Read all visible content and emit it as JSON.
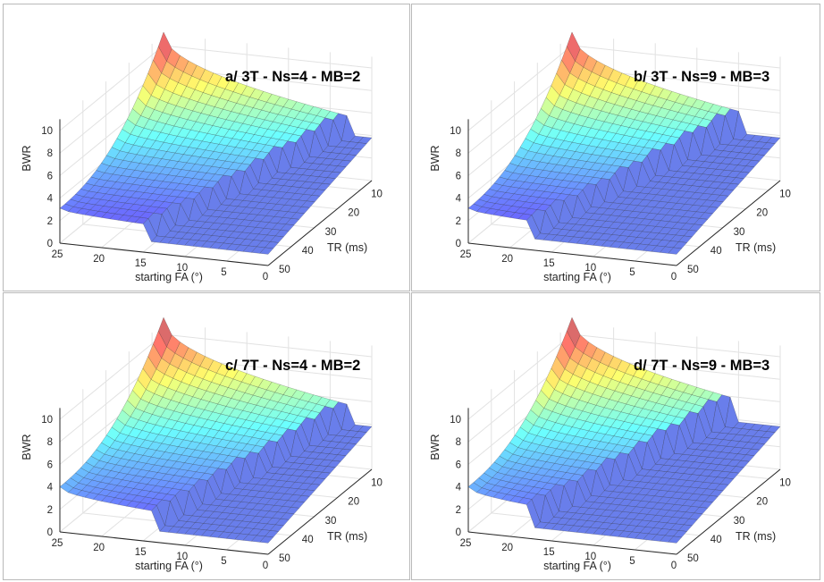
{
  "chart_data": [
    {
      "type": "surface",
      "title": "a/ 3T - Ns=4 - MB=2",
      "xlabel": "starting FA (°)",
      "ylabel": "TR (ms)",
      "zlabel": "BWR",
      "x_ticks": [
        "25",
        "20",
        "15",
        "10",
        "5",
        "0"
      ],
      "y_ticks": [
        "10",
        "20",
        "30",
        "40",
        "50"
      ],
      "z_ticks": [
        "0",
        "2",
        "4",
        "6",
        "8",
        "10"
      ],
      "xlim": [
        0,
        25
      ],
      "ylim": [
        5,
        50
      ],
      "zlim": [
        0,
        11
      ],
      "z_at_max_FA": 3.1,
      "z_peak": 11.2,
      "cutoff_FA_at_TR50": 15,
      "cutoff_FA_at_TR5": 3
    },
    {
      "type": "surface",
      "title": "b/ 3T - Ns=9 - MB=3",
      "xlabel": "starting FA (°)",
      "ylabel": "TR (ms)",
      "zlabel": "BWR",
      "x_ticks": [
        "25",
        "20",
        "15",
        "10",
        "5",
        "0"
      ],
      "y_ticks": [
        "10",
        "20",
        "30",
        "40",
        "50"
      ],
      "z_ticks": [
        "0",
        "2",
        "4",
        "6",
        "8",
        "10"
      ],
      "xlim": [
        0,
        25
      ],
      "ylim": [
        5,
        50
      ],
      "zlim": [
        0,
        11
      ],
      "z_at_max_FA": 3.1,
      "z_peak": 11.2,
      "cutoff_FA_at_TR50": 18,
      "cutoff_FA_at_TR5": 5
    },
    {
      "type": "surface",
      "title": "c/ 7T - Ns=4 - MB=2",
      "xlabel": "starting FA (°)",
      "ylabel": "TR (ms)",
      "zlabel": "BWR",
      "x_ticks": [
        "25",
        "20",
        "15",
        "10",
        "5",
        "0"
      ],
      "y_ticks": [
        "10",
        "20",
        "30",
        "40",
        "50"
      ],
      "z_ticks": [
        "0",
        "2",
        "4",
        "6",
        "8",
        "10"
      ],
      "xlim": [
        0,
        25
      ],
      "ylim": [
        5,
        50
      ],
      "zlim": [
        0,
        11
      ],
      "z_at_max_FA": 4.0,
      "z_peak": 11.5,
      "cutoff_FA_at_TR50": 14,
      "cutoff_FA_at_TR5": 3
    },
    {
      "type": "surface",
      "title": "d/ 7T - Ns=9 - MB=3",
      "xlabel": "starting FA (°)",
      "ylabel": "TR (ms)",
      "zlabel": "BWR",
      "x_ticks": [
        "25",
        "20",
        "15",
        "10",
        "5",
        "0"
      ],
      "y_ticks": [
        "10",
        "20",
        "30",
        "40",
        "50"
      ],
      "z_ticks": [
        "0",
        "2",
        "4",
        "6",
        "8",
        "10"
      ],
      "xlim": [
        0,
        25
      ],
      "ylim": [
        5,
        50
      ],
      "zlim": [
        0,
        11
      ],
      "z_at_max_FA": 4.0,
      "z_peak": 11.5,
      "cutoff_FA_at_TR50": 18,
      "cutoff_FA_at_TR5": 6
    }
  ]
}
